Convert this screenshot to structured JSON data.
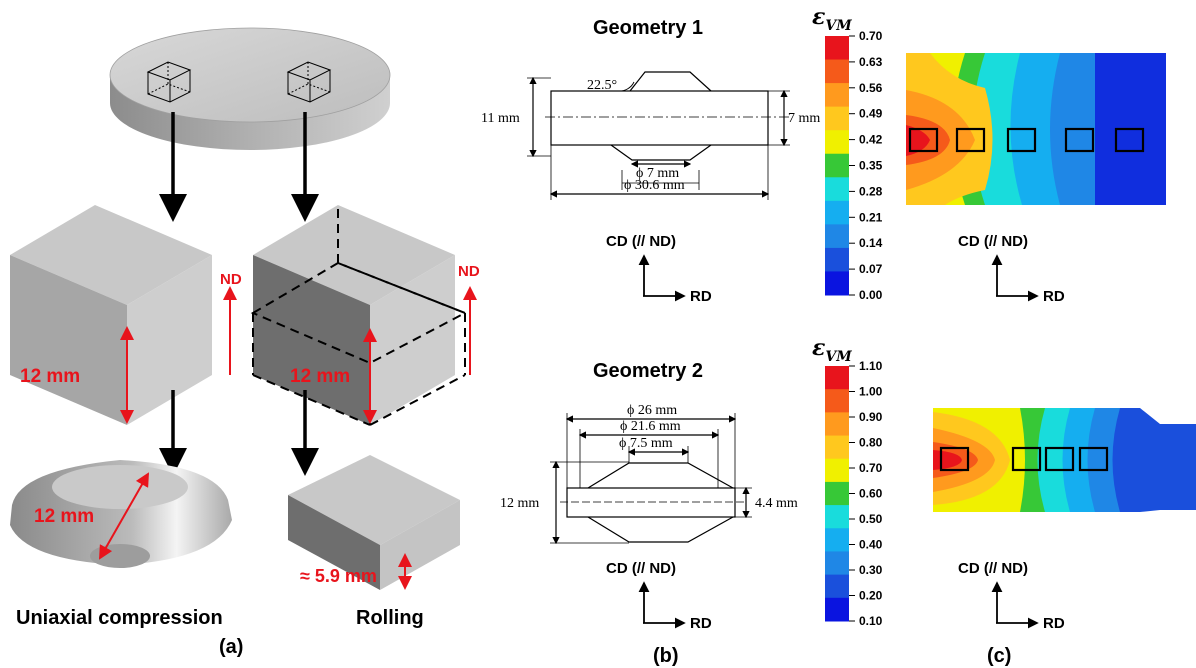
{
  "panel_a": {
    "label": "(a)",
    "cube_left": {
      "dim": "12 mm",
      "axis": "ND"
    },
    "cube_right": {
      "dim": "12 mm",
      "axis": "ND"
    },
    "compressed": {
      "dim": "12 mm",
      "caption": "Uniaxial compression"
    },
    "rolled": {
      "dim": "≈ 5.9 mm",
      "caption": "Rolling"
    }
  },
  "panel_b": {
    "label": "(b)",
    "geometry1": {
      "title": "Geometry 1",
      "angle": "22.5°",
      "height": "11 mm",
      "thickness": "7 mm",
      "inner_dia": "ϕ 7 mm",
      "outer_dia": "ϕ 30.6 mm",
      "axes": {
        "vertical": "CD (// ND)",
        "horizontal": "RD"
      }
    },
    "geometry2": {
      "title": "Geometry 2",
      "dia_outer": "ϕ 26 mm",
      "dia_mid": "ϕ 21.6 mm",
      "dia_inner": "ϕ 7.5 mm",
      "height": "12 mm",
      "thickness": "4.4 mm",
      "axes": {
        "vertical": "CD (// ND)",
        "horizontal": "RD"
      }
    }
  },
  "panel_c": {
    "label": "(c)",
    "scale1": {
      "symbol": "ε",
      "subscript": "VM",
      "ticks": [
        "0.70",
        "0.63",
        "0.56",
        "0.49",
        "0.42",
        "0.35",
        "0.28",
        "0.21",
        "0.14",
        "0.07",
        "0.00"
      ],
      "colors": [
        "#e8141c",
        "#f55a1a",
        "#ff9a1e",
        "#ffc81e",
        "#f0f000",
        "#37c837",
        "#19dcdc",
        "#15aef0",
        "#1f87e6",
        "#1a50dc",
        "#0a14e0"
      ]
    },
    "scale2": {
      "symbol": "ε",
      "subscript": "VM",
      "ticks": [
        "1.10",
        "1.00",
        "0.90",
        "0.80",
        "0.70",
        "0.60",
        "0.50",
        "0.40",
        "0.30",
        "0.20",
        "0.10"
      ],
      "colors": [
        "#e8141c",
        "#f55a1a",
        "#ff9a1e",
        "#ffc81e",
        "#f0f000",
        "#37c837",
        "#19dcdc",
        "#15aef0",
        "#1f87e6",
        "#1a50dc",
        "#0a14e0"
      ]
    },
    "map1_axes": {
      "vertical": "CD (// ND)",
      "horizontal": "RD"
    },
    "map2_axes": {
      "vertical": "CD (// ND)",
      "horizontal": "RD"
    }
  }
}
